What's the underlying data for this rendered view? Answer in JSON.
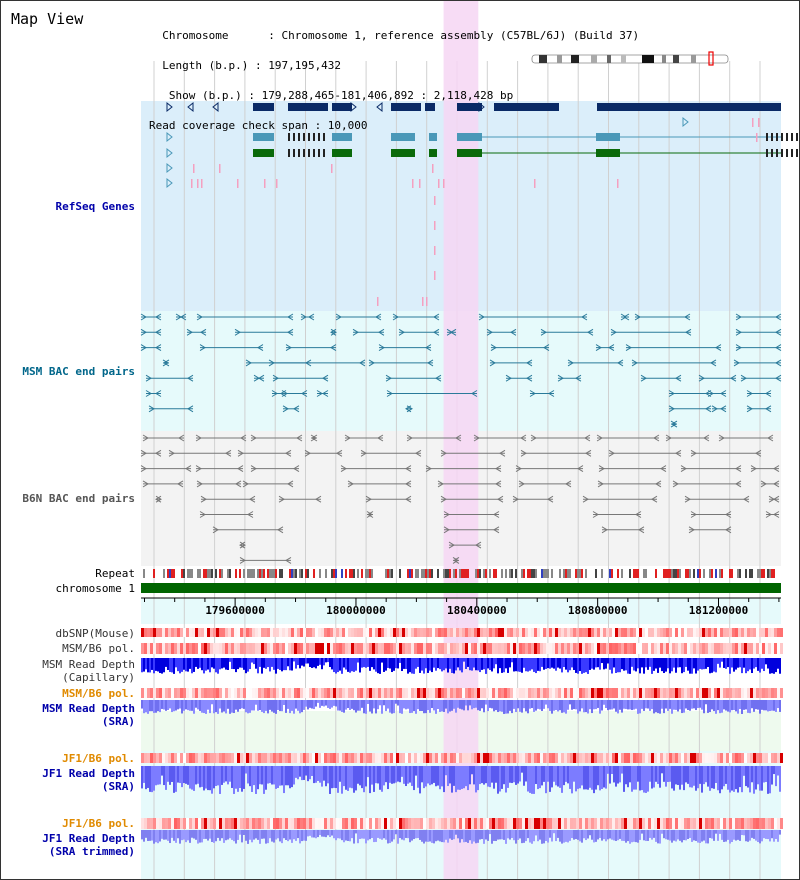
{
  "header": {
    "title": "Map View",
    "info_lines": [
      "  Chromosome      : Chromosome 1, reference assembly (C57BL/6J) (Build 37)",
      "  Length (b.p.) : 197,195,432",
      "   Show (b.p.) : 179,288,465-181,406,892 : 2,118,428 bp",
      "Read coverage check span : 10,000"
    ]
  },
  "tracks": {
    "refseq": "RefSeq Genes",
    "msm_bac": "MSM BAC end pairs",
    "b6n_bac": "B6N BAC end pairs",
    "repeat": "Repeat",
    "chromosome": "chromosome 1",
    "dbsnp": "dbSNP(Mouse)",
    "msm_b6_pol_cap": "MSM/B6 pol.",
    "msm_depth_cap": "MSM Read Depth\n(Capillary)",
    "msm_b6_pol_sra": "MSM/B6 pol.",
    "msm_depth_sra": "MSM Read Depth\n(SRA)",
    "jf1_b6_pol": "JF1/B6 pol.",
    "jf1_depth_sra": "JF1 Read Depth\n(SRA)",
    "jf1_b6_pol_trim": "JF1/B6 pol.",
    "jf1_depth_trim": "JF1 Read Depth\n(SRA trimmed)"
  },
  "axis": {
    "ticks": [
      "179600000",
      "180000000",
      "180400000",
      "180800000",
      "181200000"
    ],
    "tick_values": [
      179600000,
      180000000,
      180400000,
      180800000,
      181200000
    ],
    "range": [
      179288465,
      181406892
    ]
  },
  "highlight": {
    "start": 180290000,
    "end": 180405000
  },
  "colors": {
    "refseq_bg": "#dbeefa",
    "msm_bg": "#e6fafb",
    "b6n_bg": "#f3f3f3",
    "highlight": "#f6d6f3",
    "refseq_label": "#0000aa",
    "msm_label": "#00668a",
    "b6n_label": "#555555",
    "pol_orange": "#e08a00",
    "depth_label": "#0000aa",
    "gene_dark": "#0a2a66",
    "gene_teal": "#4a98b8",
    "gene_green": "#0a6a0a",
    "chromosome_bar": "#006400"
  }
}
